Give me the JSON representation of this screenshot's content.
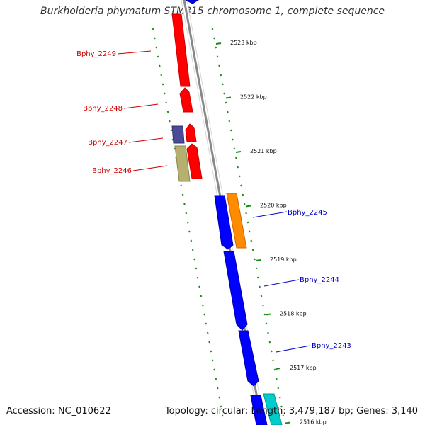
{
  "title": "Burkholderia phymatum STM815 chromosome 1, complete sequence",
  "footer": {
    "accession": "Accession: NC_010622",
    "stats": "Topology: circular; Length: 3,479,187 bp; Genes: 3,140"
  },
  "ruler_labels": [
    "2523 kbp",
    "2522 kbp",
    "2521 kbp",
    "2520 kbp",
    "2519 kbp",
    "2518 kbp",
    "2517 kbp",
    "2516 kbp"
  ],
  "genes": [
    {
      "name": "Bphy_2249",
      "strand": "reverse",
      "color": "#ff0000"
    },
    {
      "name": "Bphy_2248",
      "strand": "reverse",
      "color": "#ff0000"
    },
    {
      "name": "Bphy_2247",
      "strand": "reverse",
      "color": "#ff0000"
    },
    {
      "name": "Bphy_2246",
      "strand": "reverse",
      "color": "#ff0000"
    },
    {
      "name": "Bphy_2245",
      "strand": "forward",
      "color": "#0000ff"
    },
    {
      "name": "Bphy_2244",
      "strand": "forward",
      "color": "#0000ff"
    },
    {
      "name": "Bphy_2243",
      "strand": "forward",
      "color": "#0000ff"
    }
  ],
  "colors": {
    "reverse_label": "#cc0000",
    "forward_label": "#0000cc",
    "ruler_ticks": "#1a8a1a",
    "backbone": "#888888",
    "feature_orange": "#ff8c00",
    "feature_purple": "#4b4b9a",
    "feature_olive": "#b5b070",
    "feature_cyan": "#00cccc"
  }
}
